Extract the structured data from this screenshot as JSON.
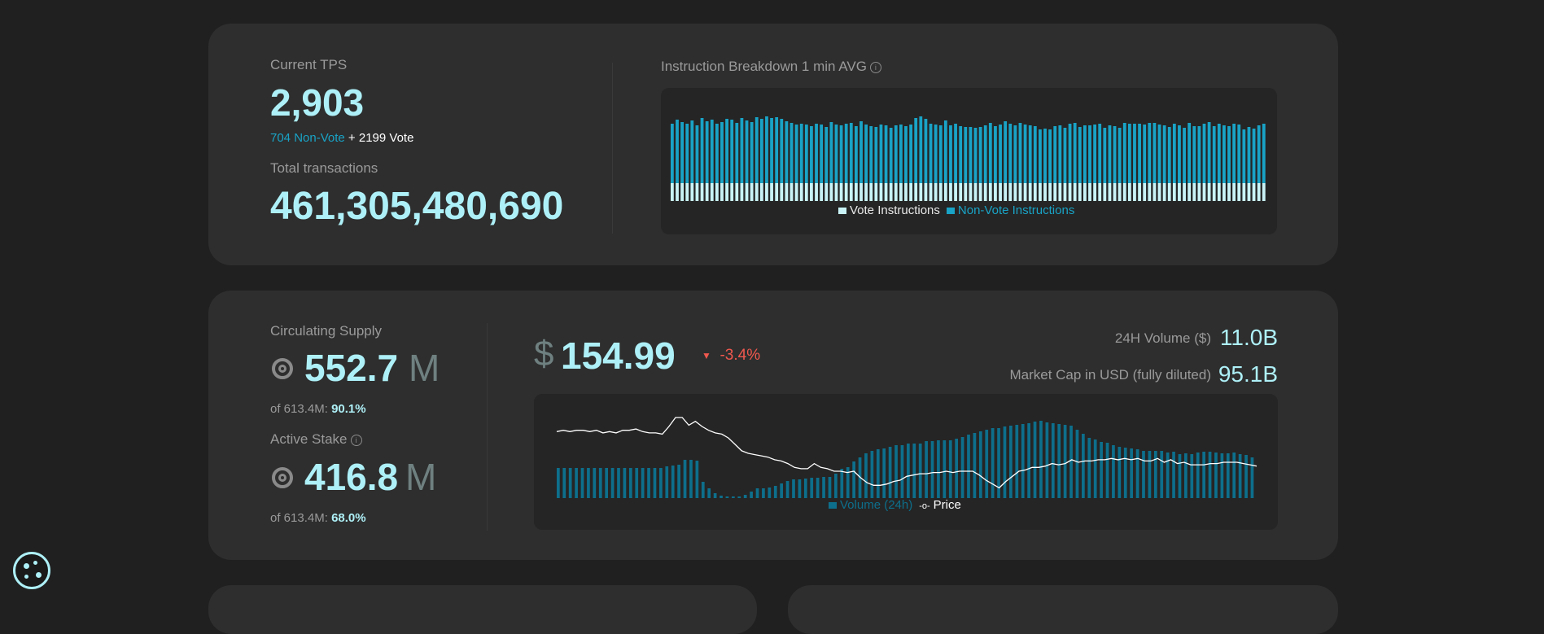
{
  "tps_card": {
    "current_tps_label": "Current TPS",
    "current_tps_value": "2,903",
    "non_vote_text": "704 Non-Vote",
    "plus": "+",
    "vote_text": "2199 Vote",
    "total_tx_label": "Total transactions",
    "total_tx_value": "461,305,480,690",
    "breakdown_title": "Instruction Breakdown 1 min AVG",
    "legend_vote": "Vote Instructions",
    "legend_nonvote": "Non-Vote Instructions",
    "colors": {
      "vote": "#c9f3f7",
      "nonvote": "#19a3c6"
    }
  },
  "supply_card": {
    "circulating_label": "Circulating Supply",
    "circulating_value": "552.7",
    "circulating_unit": "M",
    "circulating_of": "of 613.4M:",
    "circulating_pct": "90.1%",
    "stake_label": "Active Stake",
    "stake_value": "416.8",
    "stake_unit": "M",
    "stake_of": "of 613.4M:",
    "stake_pct": "68.0%",
    "price_symbol": "$",
    "price_value": "154.99",
    "price_change": "-3.4%",
    "volume_label": "24H Volume ($)",
    "volume_value": "11.0B",
    "mcap_label": "Market Cap in USD (fully diluted)",
    "mcap_value": "95.1B",
    "legend_volume": "Volume (24h)",
    "legend_price": "Price",
    "colors": {
      "volume": "#0d6f8c",
      "price": "#ffffff",
      "negative": "#f0584e"
    }
  },
  "chart_data": [
    {
      "type": "bar",
      "stacked": true,
      "title": "Instruction Breakdown 1 min AVG",
      "series": [
        {
          "name": "Vote Instructions",
          "values": [
            22,
            22,
            22,
            22,
            22,
            22,
            22,
            22,
            22,
            22,
            22,
            22,
            22,
            22,
            22,
            22,
            22,
            22,
            22,
            22,
            22,
            22,
            22,
            22,
            22,
            22,
            22,
            22,
            22,
            22,
            22,
            22,
            22,
            22,
            22,
            22,
            22,
            22,
            22,
            22,
            22,
            22,
            22,
            22,
            22,
            22,
            22,
            22,
            22,
            22,
            22,
            22,
            22,
            22,
            22,
            22,
            22,
            22,
            22,
            22,
            22,
            22,
            22,
            22,
            22,
            22,
            22,
            22,
            22,
            22,
            22,
            22,
            22,
            22,
            22,
            22,
            22,
            22,
            22,
            22,
            22,
            22,
            22,
            22,
            22,
            22,
            22,
            22,
            22,
            22,
            22,
            22,
            22,
            22,
            22,
            22,
            22,
            22,
            22,
            22,
            22,
            22,
            22,
            22,
            22,
            22,
            22,
            22,
            22,
            22,
            22,
            22,
            22,
            22,
            22,
            22,
            22,
            22,
            22,
            22
          ]
        },
        {
          "name": "Non-Vote Instructions",
          "values": [
            73,
            78,
            75,
            73,
            77,
            71,
            80,
            76,
            78,
            73,
            75,
            79,
            78,
            74,
            80,
            77,
            75,
            81,
            79,
            82,
            80,
            81,
            79,
            76,
            74,
            72,
            73,
            72,
            70,
            73,
            72,
            69,
            75,
            72,
            71,
            73,
            74,
            70,
            76,
            72,
            70,
            69,
            72,
            71,
            68,
            71,
            72,
            70,
            72,
            80,
            82,
            79,
            73,
            72,
            71,
            77,
            71,
            73,
            70,
            69,
            69,
            68,
            69,
            71,
            74,
            70,
            72,
            76,
            73,
            71,
            74,
            72,
            71,
            70,
            66,
            67,
            66,
            70,
            71,
            68,
            73,
            74,
            69,
            71,
            71,
            72,
            73,
            68,
            71,
            70,
            68,
            74,
            73,
            73,
            73,
            72,
            74,
            74,
            72,
            71,
            69,
            73,
            71,
            68,
            74,
            70,
            70,
            73,
            75,
            70,
            73,
            71,
            70,
            73,
            72,
            66,
            69,
            67,
            71,
            73
          ]
        }
      ]
    },
    {
      "type": "bar+line",
      "series": [
        {
          "name": "Volume (24h)",
          "type": "bar",
          "values": [
            37,
            37,
            37,
            37,
            37,
            37,
            37,
            37,
            37,
            37,
            37,
            37,
            37,
            37,
            37,
            37,
            37,
            37,
            39,
            40,
            41,
            47,
            47,
            46,
            20,
            12,
            6,
            3,
            2,
            2,
            2,
            4,
            8,
            12,
            12,
            13,
            15,
            18,
            21,
            23,
            23,
            24,
            25,
            25,
            26,
            26,
            30,
            36,
            38,
            45,
            50,
            55,
            58,
            60,
            61,
            63,
            65,
            65,
            67,
            67,
            67,
            70,
            70,
            71,
            71,
            71,
            73,
            75,
            78,
            80,
            82,
            84,
            86,
            86,
            88,
            89,
            90,
            91,
            92,
            94,
            95,
            93,
            92,
            91,
            90,
            89,
            84,
            79,
            74,
            72,
            69,
            68,
            65,
            63,
            62,
            61,
            60,
            58,
            58,
            58,
            58,
            56,
            57,
            54,
            55,
            54,
            56,
            57,
            57,
            56,
            55,
            55,
            56,
            54,
            53,
            50
          ]
        },
        {
          "name": "Price",
          "type": "line",
          "values": [
            172,
            173,
            172,
            173,
            173,
            172,
            173,
            171,
            172,
            171,
            173,
            173,
            174,
            172,
            171,
            171,
            170,
            176,
            183,
            183,
            177,
            180,
            176,
            173,
            171,
            170,
            167,
            162,
            157,
            155,
            154,
            153,
            152,
            150,
            149,
            147,
            144,
            143,
            143,
            147,
            144,
            143,
            141,
            141,
            140,
            141,
            136,
            132,
            130,
            130,
            131,
            133,
            134,
            137,
            138,
            139,
            139,
            140,
            140,
            141,
            140,
            141,
            141,
            141,
            138,
            134,
            131,
            128,
            133,
            137,
            141,
            142,
            144,
            144,
            145,
            147,
            146,
            147,
            150,
            148,
            149,
            149,
            150,
            150,
            151,
            150,
            151,
            150,
            151,
            149,
            149,
            151,
            148,
            150,
            147,
            148,
            146,
            146,
            146,
            147,
            147,
            148,
            148,
            148,
            147,
            146,
            145
          ]
        }
      ]
    }
  ]
}
